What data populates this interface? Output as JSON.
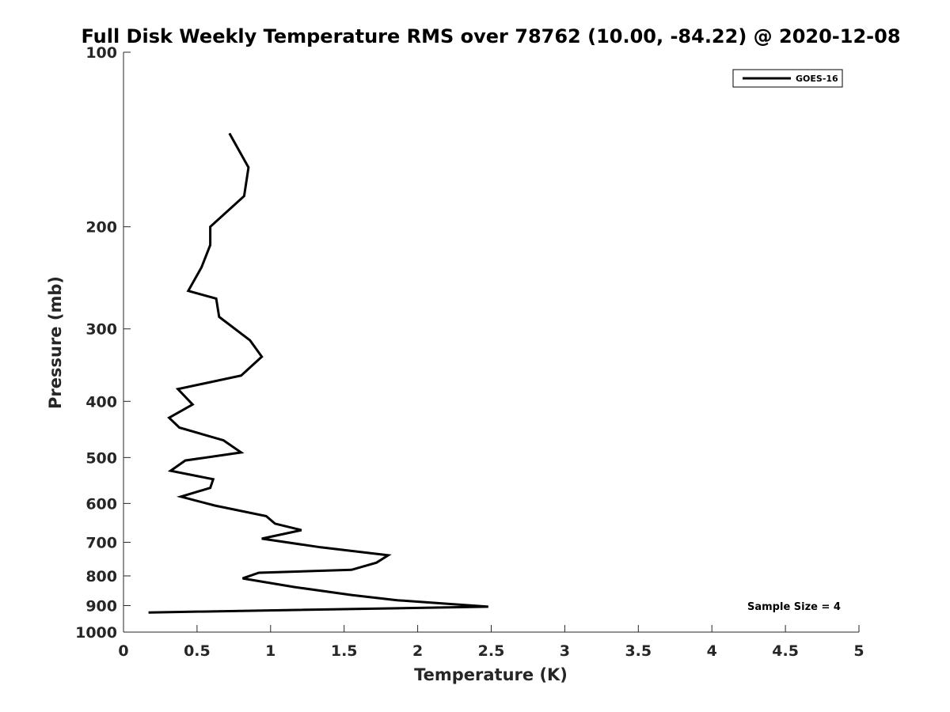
{
  "chart_data": {
    "type": "line",
    "title": "Full Disk Weekly Temperature RMS over 78762 (10.00, -84.22) @ 2020-12-08",
    "xlabel": "Temperature (K)",
    "ylabel": "Pressure (mb)",
    "xlim": [
      0,
      5
    ],
    "ylim": [
      1000,
      100
    ],
    "yscale": "log",
    "y_inverted": true,
    "grid": false,
    "legend_placement": "top-right",
    "x_ticks": [
      "0",
      "0.5",
      "1",
      "1.5",
      "2",
      "2.5",
      "3",
      "3.5",
      "4",
      "4.5",
      "5"
    ],
    "y_ticks": [
      "100",
      "200",
      "300",
      "400",
      "500",
      "600",
      "700",
      "800",
      "900",
      "1000"
    ],
    "annotation": "Sample Size = 4",
    "series": [
      {
        "name": "GOES-16",
        "color": "#000000",
        "x": [
          0.72,
          0.85,
          0.82,
          0.59,
          0.59,
          0.53,
          0.44,
          0.63,
          0.65,
          0.86,
          0.94,
          0.8,
          0.37,
          0.47,
          0.31,
          0.38,
          0.68,
          0.8,
          0.42,
          0.32,
          0.61,
          0.59,
          0.39,
          0.62,
          0.97,
          1.03,
          1.21,
          0.94,
          1.34,
          1.8,
          1.72,
          1.55,
          0.92,
          0.81,
          1.16,
          1.55,
          1.86,
          2.48,
          0.17
        ],
        "y": [
          138,
          158,
          177,
          200,
          215,
          235,
          258,
          266,
          286,
          314,
          335,
          361,
          381,
          405,
          427,
          444,
          467,
          490,
          506,
          527,
          545,
          564,
          584,
          605,
          631,
          650,
          667,
          690,
          714,
          737,
          759,
          781,
          790,
          808,
          836,
          863,
          881,
          904,
          925
        ]
      }
    ]
  }
}
